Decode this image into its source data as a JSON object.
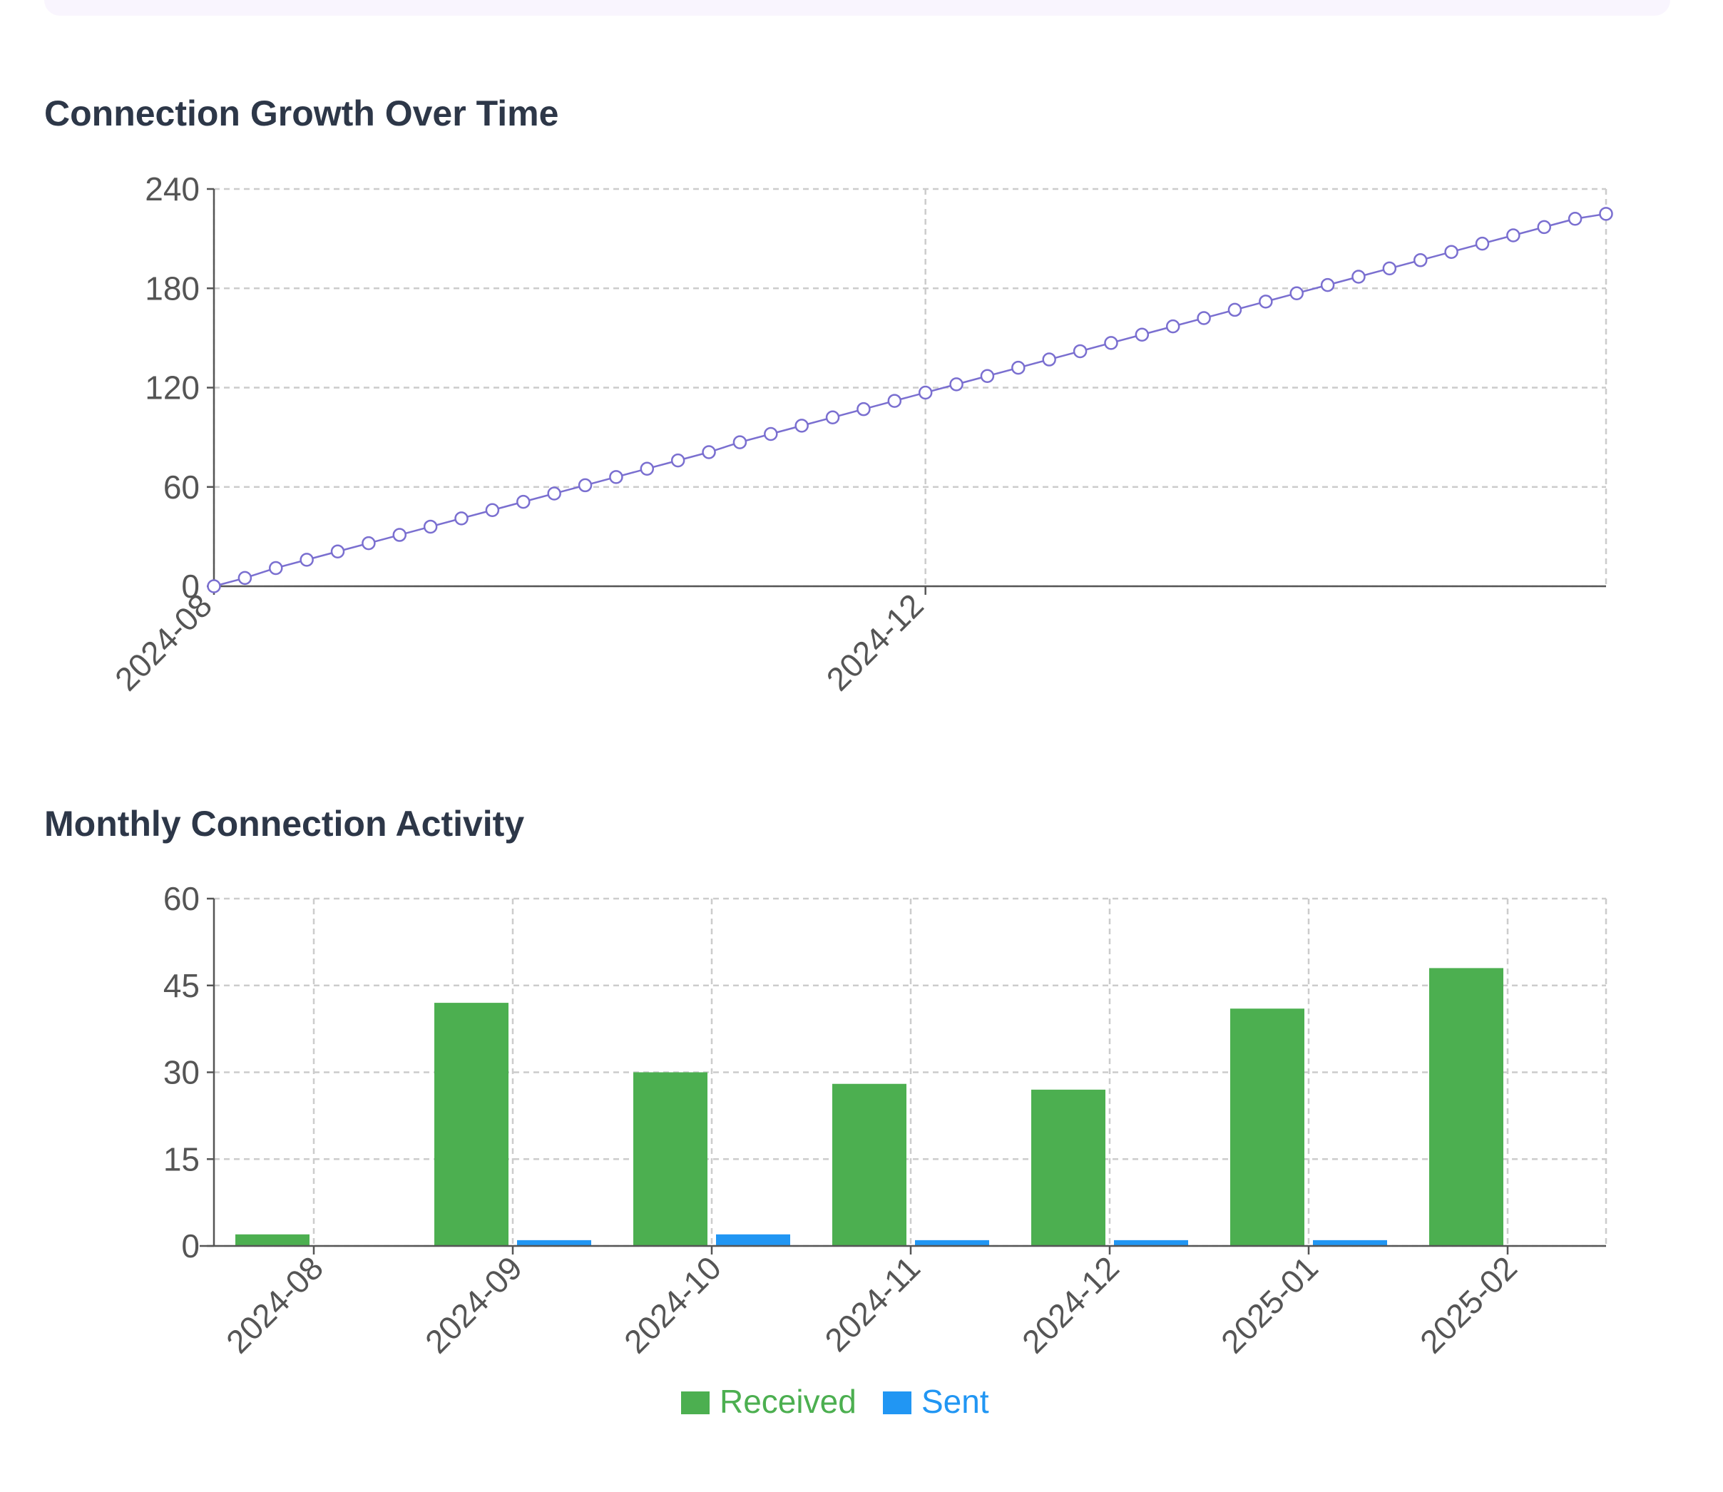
{
  "sections": {
    "growth_title": "Connection Growth Over Time",
    "activity_title": "Monthly Connection Activity"
  },
  "colors": {
    "line": "#7a6fd0",
    "received": "#4caf50",
    "sent": "#2196f3",
    "grid": "#cccccc",
    "axis": "#555555"
  },
  "chart_data": [
    {
      "type": "line",
      "title": "Connection Growth Over Time",
      "xlabel": "",
      "ylabel": "",
      "x_ticks": [
        "2024-08",
        "2024-12"
      ],
      "yticks": [
        0,
        60,
        120,
        180,
        240
      ],
      "ylim": [
        0,
        240
      ],
      "grid": true,
      "marker": "circle-open",
      "series": [
        {
          "values": [
            0,
            5,
            11,
            16,
            21,
            26,
            31,
            36,
            41,
            46,
            51,
            56,
            61,
            66,
            71,
            76,
            81,
            87,
            92,
            97,
            102,
            107,
            112,
            117,
            122,
            127,
            132,
            137,
            142,
            147,
            152,
            157,
            162,
            167,
            172,
            177,
            182,
            187,
            192,
            197,
            202,
            207,
            212,
            217,
            222,
            225
          ]
        }
      ]
    },
    {
      "type": "bar",
      "title": "Monthly Connection Activity",
      "xlabel": "",
      "ylabel": "",
      "categories": [
        "2024-08",
        "2024-09",
        "2024-10",
        "2024-11",
        "2024-12",
        "2025-01",
        "2025-02"
      ],
      "yticks": [
        0,
        15,
        30,
        45,
        60
      ],
      "ylim": [
        0,
        60
      ],
      "grid": true,
      "legend_position": "bottom",
      "series": [
        {
          "name": "Received",
          "values": [
            2,
            42,
            30,
            28,
            27,
            41,
            48
          ]
        },
        {
          "name": "Sent",
          "values": [
            0,
            1,
            2,
            1,
            1,
            1,
            0
          ]
        }
      ]
    }
  ]
}
